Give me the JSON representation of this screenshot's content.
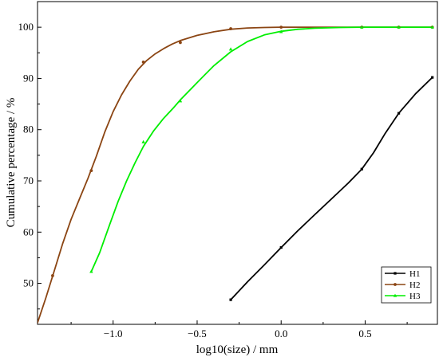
{
  "chart_data": {
    "type": "line",
    "xlabel": "log10(size) / mm",
    "ylabel": "Cumulative percentage / %",
    "xlim": [
      -1.45,
      0.93
    ],
    "ylim": [
      42,
      105
    ],
    "x_ticks": [
      {
        "value": -1.0,
        "label": "−1.0"
      },
      {
        "value": -0.5,
        "label": "−0.5"
      },
      {
        "value": 0.0,
        "label": "0.0"
      },
      {
        "value": 0.5,
        "label": "0.5"
      }
    ],
    "y_ticks": [
      {
        "value": 50,
        "label": "50"
      },
      {
        "value": 60,
        "label": "60"
      },
      {
        "value": 70,
        "label": "70"
      },
      {
        "value": 80,
        "label": "80"
      },
      {
        "value": 90,
        "label": "90"
      },
      {
        "value": 100,
        "label": "100"
      }
    ],
    "grid": false,
    "legend_position": "bottom-right",
    "series": [
      {
        "name": "H1",
        "color": "#000000",
        "marker": "square",
        "points": [
          {
            "x": -0.3,
            "y": 46.8
          },
          {
            "x": 0.0,
            "y": 57.0
          },
          {
            "x": 0.48,
            "y": 72.3
          },
          {
            "x": 0.7,
            "y": 83.2
          },
          {
            "x": 0.9,
            "y": 90.2
          }
        ],
        "curve": [
          [
            -0.3,
            46.8
          ],
          [
            -0.2,
            50.3
          ],
          [
            -0.1,
            53.6
          ],
          [
            0.0,
            57.0
          ],
          [
            0.1,
            60.3
          ],
          [
            0.2,
            63.4
          ],
          [
            0.3,
            66.5
          ],
          [
            0.4,
            69.6
          ],
          [
            0.48,
            72.3
          ],
          [
            0.55,
            75.5
          ],
          [
            0.62,
            79.3
          ],
          [
            0.7,
            83.2
          ],
          [
            0.8,
            87.0
          ],
          [
            0.9,
            90.2
          ]
        ]
      },
      {
        "name": "H2",
        "color": "#8b4513",
        "marker": "circle",
        "points": [
          {
            "x": -1.36,
            "y": 51.5
          },
          {
            "x": -1.13,
            "y": 72.0
          },
          {
            "x": -0.82,
            "y": 93.2
          },
          {
            "x": -0.6,
            "y": 97.0
          },
          {
            "x": -0.3,
            "y": 99.7
          },
          {
            "x": 0.0,
            "y": 100.0
          },
          {
            "x": 0.48,
            "y": 100.0
          },
          {
            "x": 0.7,
            "y": 100.0
          },
          {
            "x": 0.9,
            "y": 100.0
          }
        ],
        "curve": [
          [
            -1.45,
            42.3
          ],
          [
            -1.4,
            47.2
          ],
          [
            -1.35,
            52.5
          ],
          [
            -1.3,
            57.8
          ],
          [
            -1.25,
            62.5
          ],
          [
            -1.2,
            66.5
          ],
          [
            -1.15,
            70.5
          ],
          [
            -1.1,
            74.8
          ],
          [
            -1.05,
            79.5
          ],
          [
            -1.0,
            83.5
          ],
          [
            -0.95,
            86.8
          ],
          [
            -0.9,
            89.5
          ],
          [
            -0.85,
            91.8
          ],
          [
            -0.8,
            93.5
          ],
          [
            -0.75,
            94.8
          ],
          [
            -0.7,
            95.8
          ],
          [
            -0.65,
            96.7
          ],
          [
            -0.6,
            97.4
          ],
          [
            -0.5,
            98.4
          ],
          [
            -0.4,
            99.1
          ],
          [
            -0.3,
            99.6
          ],
          [
            -0.2,
            99.85
          ],
          [
            -0.1,
            99.95
          ],
          [
            0.0,
            100.0
          ],
          [
            0.3,
            100.0
          ],
          [
            0.6,
            100.0
          ],
          [
            0.9,
            100.0
          ]
        ]
      },
      {
        "name": "H3",
        "color": "#00ee00",
        "marker": "triangle",
        "points": [
          {
            "x": -1.13,
            "y": 52.3
          },
          {
            "x": -0.82,
            "y": 77.6
          },
          {
            "x": -0.6,
            "y": 85.6
          },
          {
            "x": -0.3,
            "y": 95.7
          },
          {
            "x": 0.0,
            "y": 99.1
          },
          {
            "x": 0.48,
            "y": 100.0
          },
          {
            "x": 0.7,
            "y": 100.0
          },
          {
            "x": 0.9,
            "y": 100.0
          }
        ],
        "curve": [
          [
            -1.13,
            52.3
          ],
          [
            -1.08,
            56.0
          ],
          [
            -1.02,
            61.5
          ],
          [
            -0.97,
            66.0
          ],
          [
            -0.92,
            70.0
          ],
          [
            -0.87,
            73.5
          ],
          [
            -0.82,
            76.7
          ],
          [
            -0.76,
            79.7
          ],
          [
            -0.7,
            82.2
          ],
          [
            -0.64,
            84.3
          ],
          [
            -0.6,
            85.8
          ],
          [
            -0.5,
            89.2
          ],
          [
            -0.4,
            92.5
          ],
          [
            -0.3,
            95.2
          ],
          [
            -0.2,
            97.2
          ],
          [
            -0.1,
            98.5
          ],
          [
            0.0,
            99.2
          ],
          [
            0.1,
            99.6
          ],
          [
            0.2,
            99.8
          ],
          [
            0.35,
            99.95
          ],
          [
            0.48,
            100.0
          ],
          [
            0.7,
            100.0
          ],
          [
            0.9,
            100.0
          ]
        ]
      }
    ]
  }
}
